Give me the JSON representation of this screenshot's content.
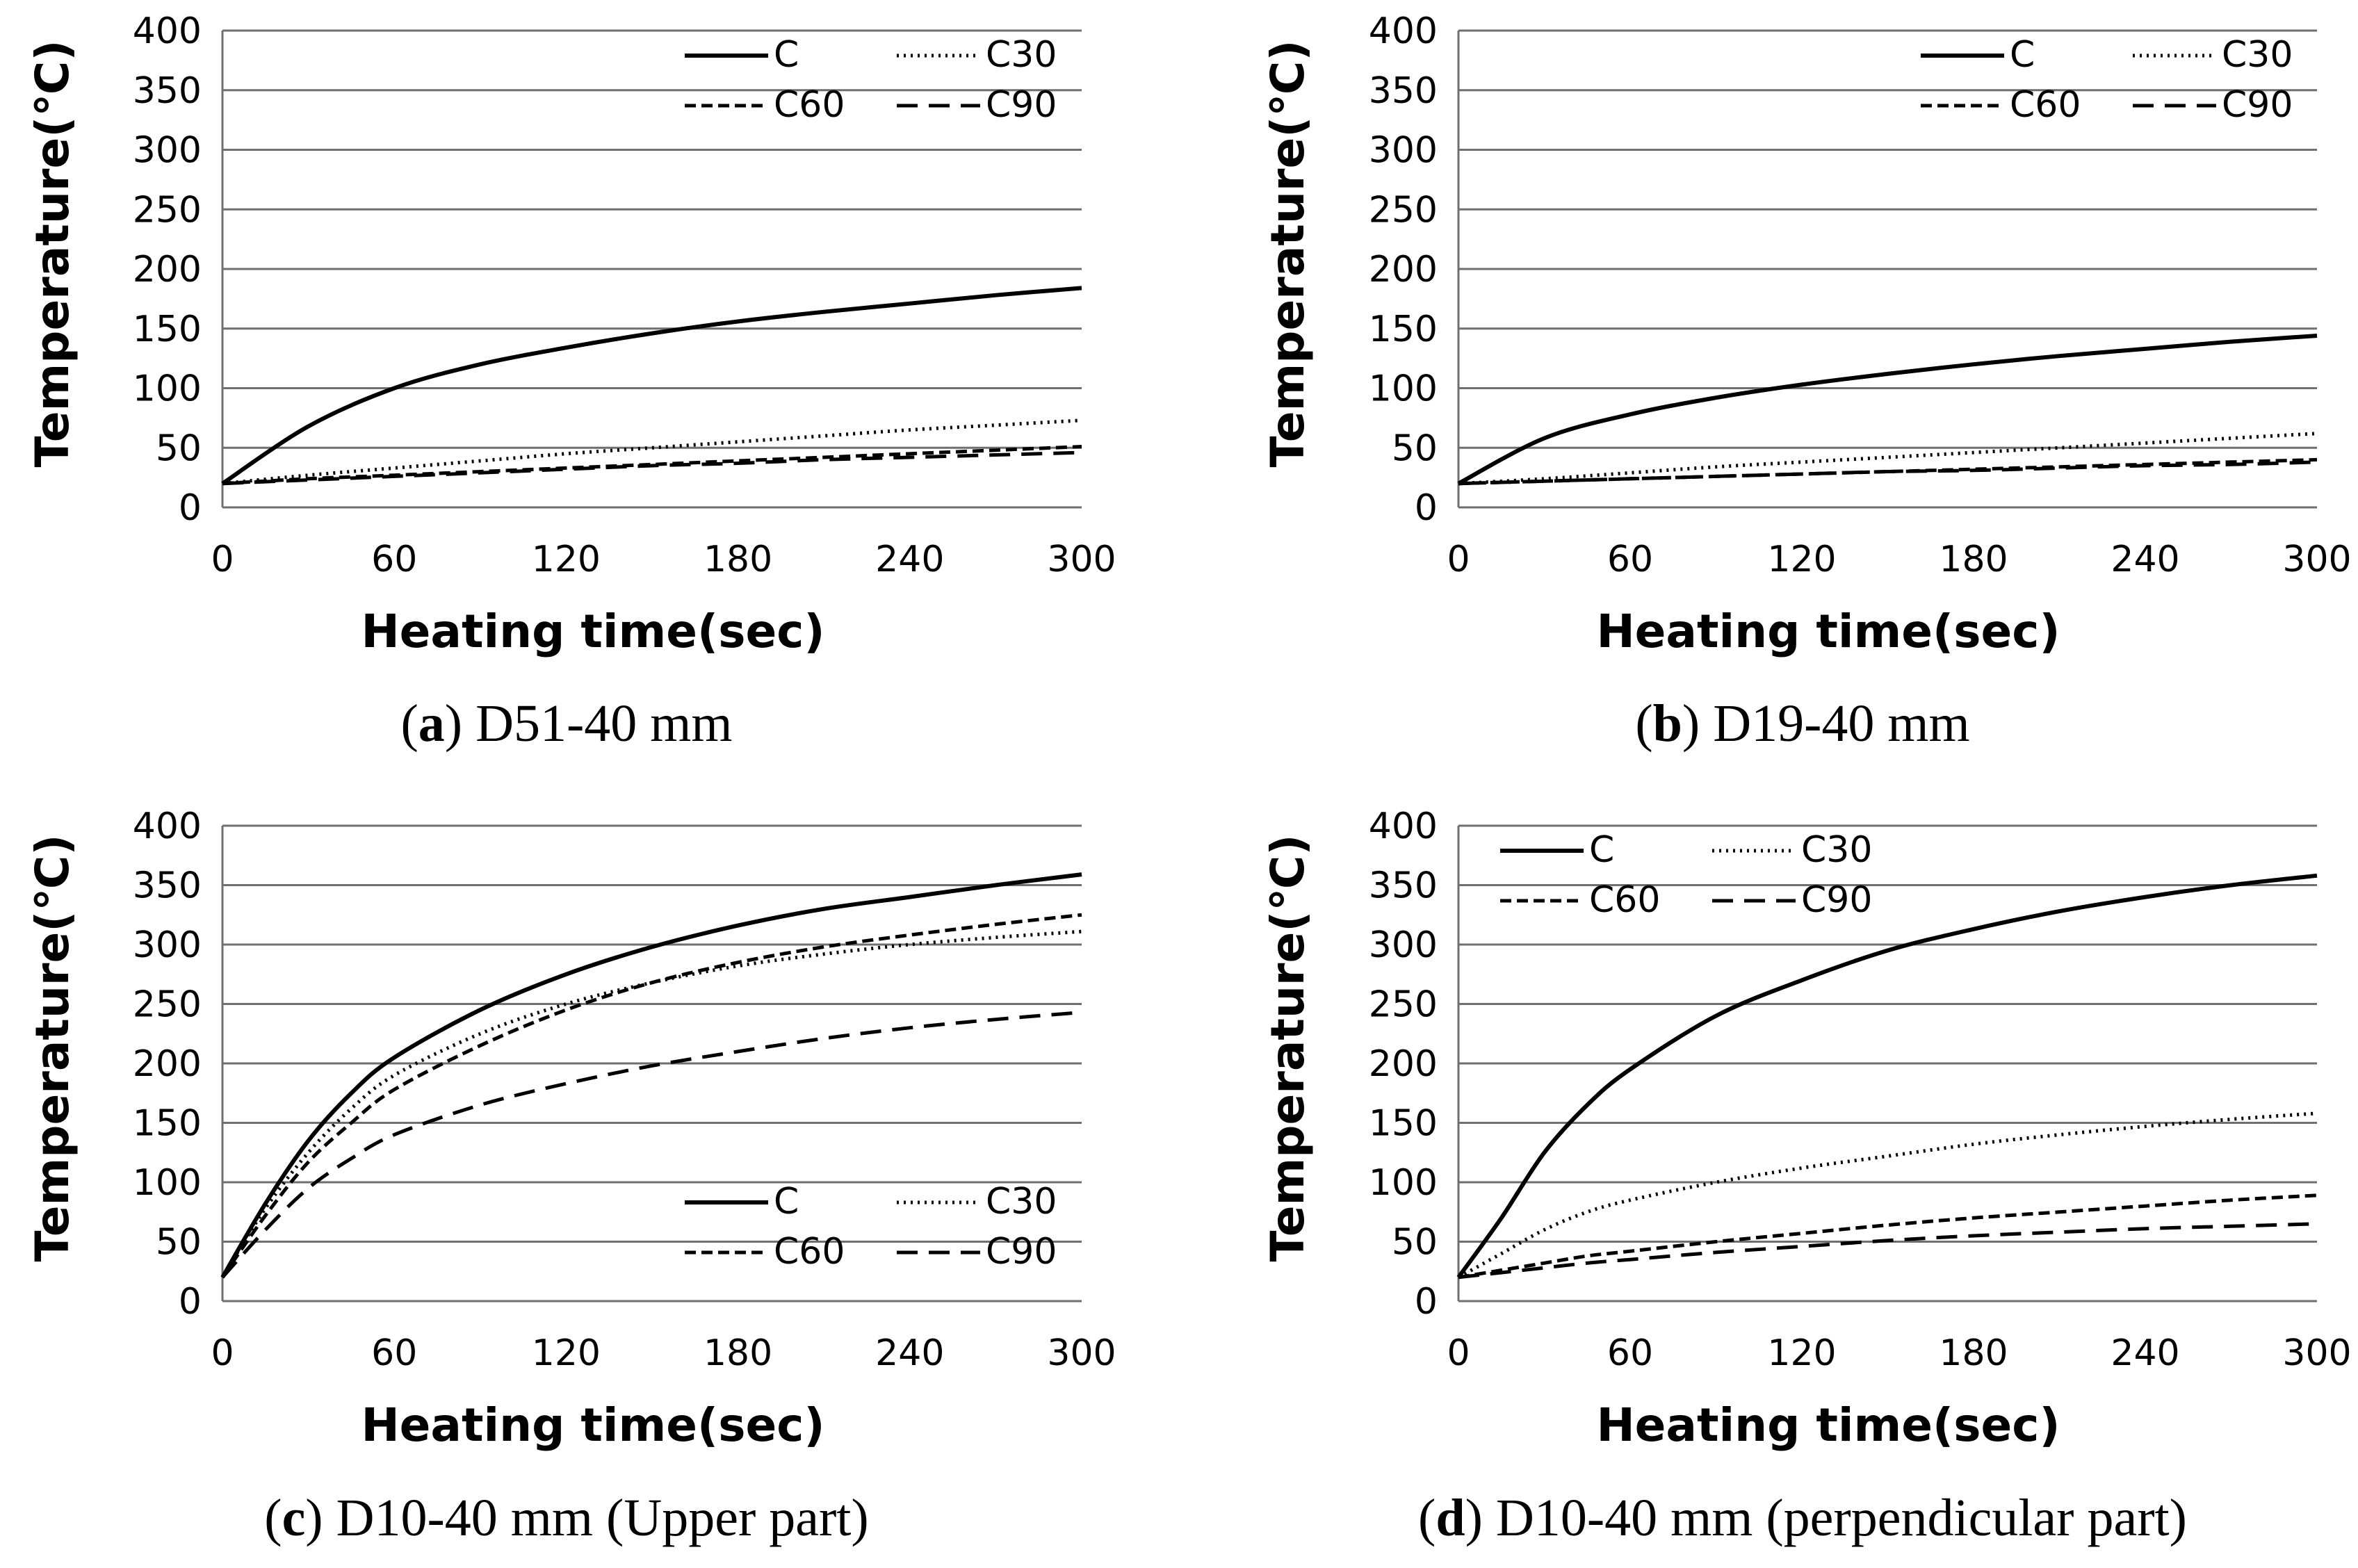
{
  "figure": {
    "x_axis_title": "Heating time(sec)",
    "y_axis_title": "Temperature(℃)"
  },
  "styles": {
    "C": {
      "dash": "none",
      "width": 6
    },
    "C30": {
      "dash": "3 7",
      "width": 5
    },
    "C60": {
      "dash": "16 8",
      "width": 5
    },
    "C90": {
      "dash": "30 16",
      "width": 5
    }
  },
  "chart_data": [
    {
      "type": "line",
      "label": "a",
      "caption": "D51-40 mm",
      "x": [
        0,
        30,
        60,
        90,
        120,
        150,
        180,
        210,
        240,
        270,
        300
      ],
      "xlim": [
        0,
        300
      ],
      "ylim": [
        0,
        400
      ],
      "xticks": [
        0,
        60,
        120,
        180,
        240,
        300
      ],
      "yticks": [
        0,
        50,
        100,
        150,
        200,
        250,
        300,
        350,
        400
      ],
      "legend_position": "top-right",
      "series": [
        {
          "name": "C",
          "values": [
            20,
            68,
            100,
            120,
            134,
            146,
            156,
            164,
            171,
            178,
            184
          ]
        },
        {
          "name": "C30",
          "values": [
            20,
            27,
            33,
            39,
            45,
            50,
            55,
            60,
            65,
            69,
            73
          ]
        },
        {
          "name": "C60",
          "values": [
            20,
            24,
            27,
            30,
            33,
            36,
            39,
            42,
            45,
            48,
            51
          ]
        },
        {
          "name": "C90",
          "values": [
            20,
            23,
            26,
            29,
            32,
            35,
            37,
            40,
            42,
            44,
            46
          ]
        }
      ]
    },
    {
      "type": "line",
      "label": "b",
      "caption": "D19-40 mm",
      "x": [
        0,
        30,
        60,
        90,
        120,
        150,
        180,
        210,
        240,
        270,
        300
      ],
      "xlim": [
        0,
        300
      ],
      "ylim": [
        0,
        400
      ],
      "xticks": [
        0,
        60,
        120,
        180,
        240,
        300
      ],
      "yticks": [
        0,
        50,
        100,
        150,
        200,
        250,
        300,
        350,
        400
      ],
      "legend_position": "top-right",
      "series": [
        {
          "name": "C",
          "values": [
            20,
            58,
            78,
            92,
            103,
            112,
            120,
            127,
            133,
            139,
            144
          ]
        },
        {
          "name": "C30",
          "values": [
            20,
            24,
            29,
            34,
            38,
            42,
            46,
            50,
            54,
            58,
            62
          ]
        },
        {
          "name": "C60",
          "values": [
            20,
            22,
            24,
            26,
            28,
            30,
            32,
            34,
            36,
            38,
            40
          ]
        },
        {
          "name": "C90",
          "values": [
            20,
            22,
            24,
            26,
            28,
            30,
            31,
            33,
            35,
            36,
            38
          ]
        }
      ]
    },
    {
      "type": "line",
      "label": "c",
      "caption": "D10-40 mm (Upper part)",
      "x": [
        0,
        15,
        30,
        45,
        60,
        90,
        120,
        150,
        180,
        210,
        240,
        270,
        300
      ],
      "xlim": [
        0,
        300
      ],
      "ylim": [
        0,
        400
      ],
      "xticks": [
        0,
        60,
        120,
        180,
        240,
        300
      ],
      "yticks": [
        0,
        50,
        100,
        150,
        200,
        250,
        300,
        350,
        400
      ],
      "legend_position": "bottom-right",
      "series": [
        {
          "name": "C",
          "values": [
            20,
            82,
            135,
            175,
            205,
            245,
            275,
            298,
            316,
            330,
            340,
            350,
            359
          ]
        },
        {
          "name": "C30",
          "values": [
            20,
            78,
            125,
            162,
            190,
            225,
            250,
            268,
            282,
            292,
            300,
            306,
            311
          ]
        },
        {
          "name": "C60",
          "values": [
            20,
            72,
            117,
            150,
            178,
            215,
            245,
            268,
            285,
            298,
            308,
            317,
            325
          ]
        },
        {
          "name": "C90",
          "values": [
            20,
            60,
            95,
            120,
            140,
            165,
            183,
            198,
            210,
            221,
            230,
            237,
            243
          ]
        }
      ]
    },
    {
      "type": "line",
      "label": "d",
      "caption": "D10-40 mm (perpendicular part)",
      "x": [
        0,
        15,
        30,
        45,
        60,
        90,
        120,
        150,
        180,
        210,
        240,
        270,
        300
      ],
      "xlim": [
        0,
        300
      ],
      "ylim": [
        0,
        400
      ],
      "xticks": [
        0,
        60,
        120,
        180,
        240,
        300
      ],
      "yticks": [
        0,
        50,
        100,
        150,
        200,
        250,
        300,
        350,
        400
      ],
      "legend_position": "top-left",
      "series": [
        {
          "name": "C",
          "values": [
            20,
            70,
            125,
            165,
            195,
            240,
            270,
            295,
            313,
            328,
            340,
            350,
            358
          ]
        },
        {
          "name": "C30",
          "values": [
            20,
            40,
            60,
            75,
            85,
            100,
            112,
            122,
            132,
            140,
            147,
            153,
            158
          ]
        },
        {
          "name": "C60",
          "values": [
            20,
            26,
            32,
            38,
            42,
            50,
            57,
            64,
            70,
            75,
            80,
            85,
            89
          ]
        },
        {
          "name": "C90",
          "values": [
            20,
            24,
            28,
            32,
            35,
            41,
            46,
            51,
            55,
            58,
            61,
            63,
            65
          ]
        }
      ]
    }
  ]
}
